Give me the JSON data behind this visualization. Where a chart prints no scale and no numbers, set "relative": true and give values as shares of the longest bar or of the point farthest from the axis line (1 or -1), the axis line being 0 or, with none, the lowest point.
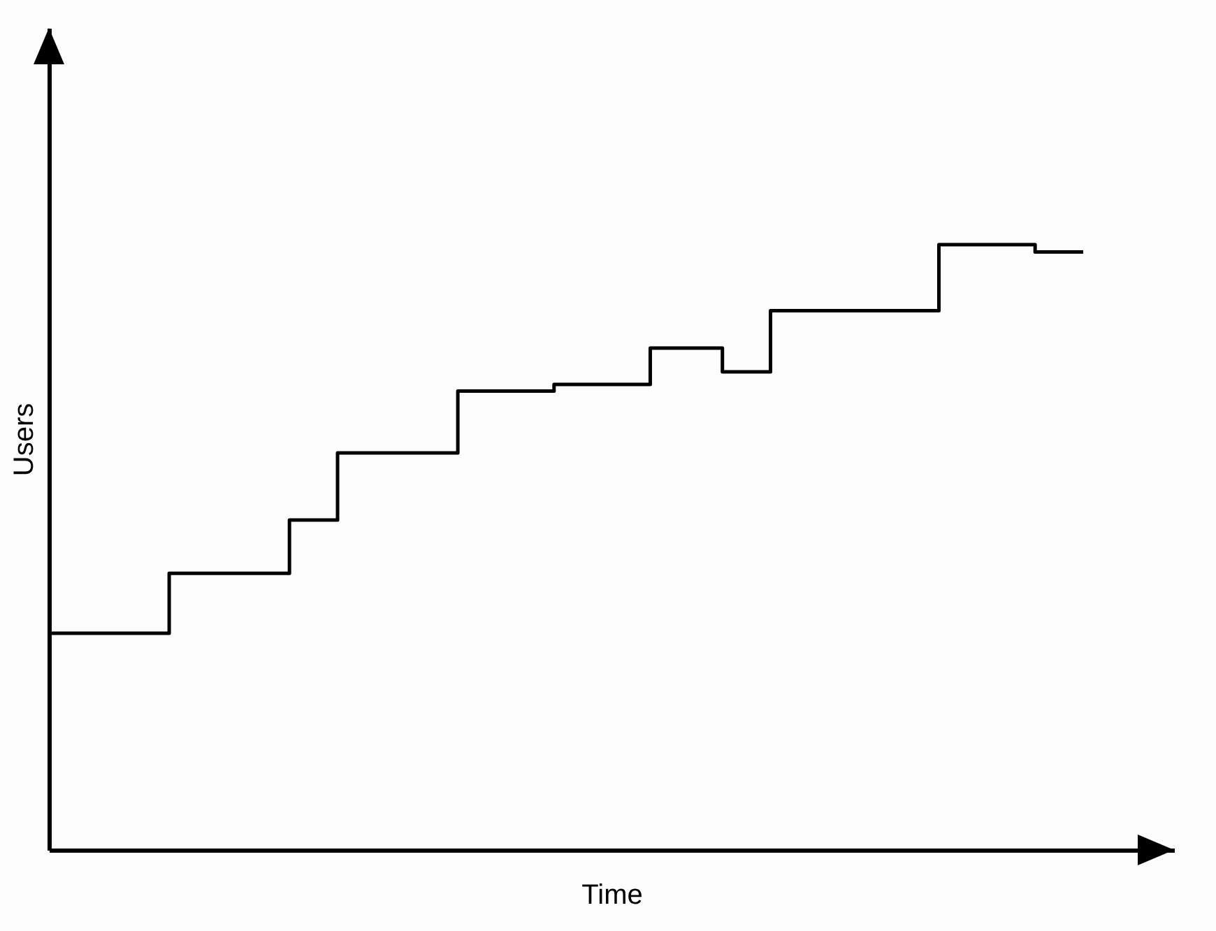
{
  "chart_data": {
    "type": "step",
    "relative": true,
    "xlabel": "Time",
    "ylabel": "Users",
    "line_style": "solid",
    "categories": [
      null,
      null,
      null,
      null,
      null,
      null,
      null,
      null,
      null,
      null,
      null,
      null,
      null,
      null,
      null,
      null,
      null,
      null,
      null,
      null,
      null,
      null,
      null,
      null,
      null,
      null,
      null,
      null,
      null,
      null,
      null,
      null,
      null,
      null,
      null,
      null,
      null,
      null,
      null,
      null,
      null,
      null,
      null,
      null
    ],
    "series": [
      {
        "color": "#000000",
        "values": [
          0.358,
          0.358,
          0.358,
          0.358,
          0.358,
          0.457,
          0.457,
          0.457,
          0.457,
          0.457,
          0.545,
          0.545,
          0.656,
          0.656,
          0.656,
          0.656,
          0.656,
          0.758,
          0.758,
          0.758,
          0.758,
          0.769,
          0.769,
          0.769,
          0.769,
          0.829,
          0.829,
          0.829,
          0.79,
          0.79,
          0.891,
          0.891,
          0.891,
          0.891,
          0.891,
          0.891,
          0.891,
          1,
          1,
          1,
          1,
          0.988,
          0.988,
          0.988
        ]
      }
    ]
  }
}
